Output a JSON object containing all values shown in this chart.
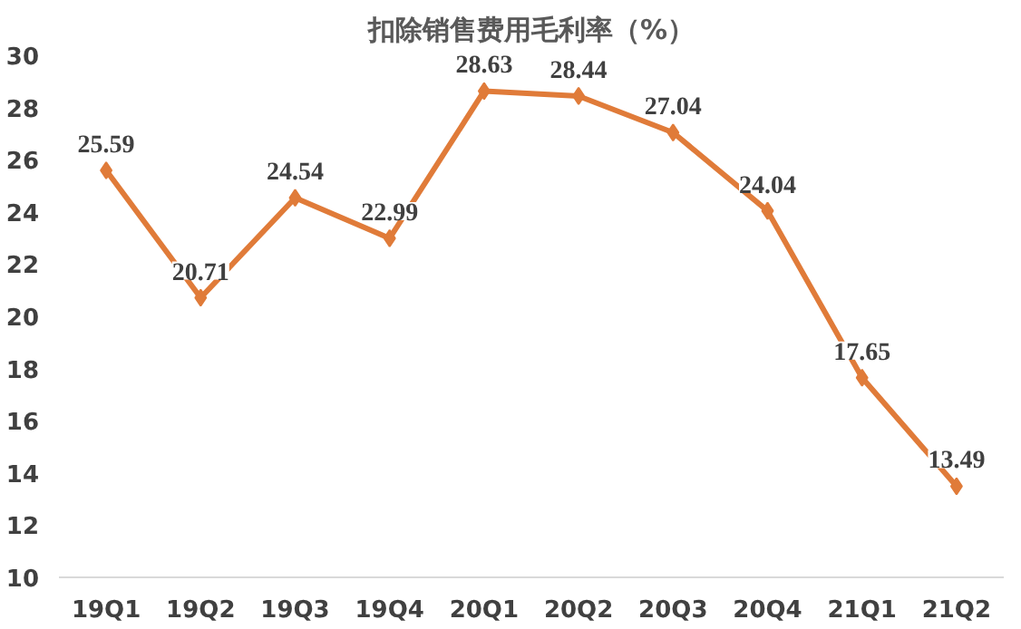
{
  "chart_data": {
    "type": "line",
    "title": "扣除销售费用毛利率（%）",
    "categories": [
      "19Q1",
      "19Q2",
      "19Q3",
      "19Q4",
      "20Q1",
      "20Q2",
      "20Q3",
      "20Q4",
      "21Q1",
      "21Q2"
    ],
    "series": [
      {
        "color": "#e07b39",
        "values": [
          25.59,
          20.71,
          24.54,
          22.99,
          28.63,
          28.44,
          27.04,
          24.04,
          17.65,
          13.49
        ]
      }
    ],
    "ylim": [
      10,
      30
    ],
    "yticks": [
      10,
      12,
      14,
      16,
      18,
      20,
      22,
      24,
      26,
      28,
      30
    ],
    "data_labels": true,
    "marker": "diamond",
    "line_style": "solid",
    "grid": false
  }
}
